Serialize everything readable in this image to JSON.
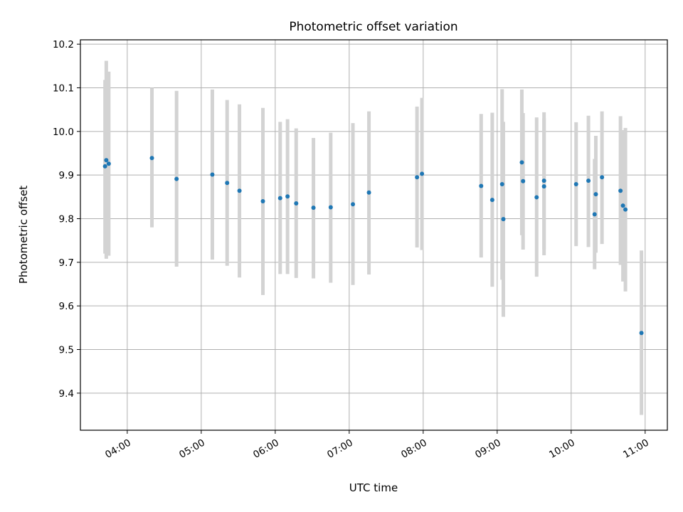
{
  "chart_data": {
    "type": "scatter",
    "title": "Photometric offset variation",
    "xlabel": "UTC time",
    "ylabel": "Photometric offset",
    "x_unit": "UTC time (HH:MM)",
    "xlim": [
      "03:22",
      "11:18"
    ],
    "ylim": [
      9.315,
      10.21
    ],
    "x_ticks": [
      "04:00",
      "05:00",
      "06:00",
      "07:00",
      "08:00",
      "09:00",
      "10:00",
      "11:00"
    ],
    "y_ticks": [
      "9.4",
      "9.5",
      "9.6",
      "9.7",
      "9.8",
      "9.9",
      "10.0",
      "10.1",
      "10.2"
    ],
    "grid": true,
    "marker_color": "#1f77b4",
    "errorbar_color": "#d3d3d3",
    "points": [
      {
        "x": "03:42",
        "y": 9.92,
        "lo": 9.72,
        "hi": 10.118
      },
      {
        "x": "03:43",
        "y": 9.934,
        "lo": 9.708,
        "hi": 10.162
      },
      {
        "x": "03:45",
        "y": 9.926,
        "lo": 9.715,
        "hi": 10.137
      },
      {
        "x": "04:20",
        "y": 9.939,
        "lo": 9.78,
        "hi": 10.1
      },
      {
        "x": "04:40",
        "y": 9.891,
        "lo": 9.69,
        "hi": 10.093
      },
      {
        "x": "05:09",
        "y": 9.901,
        "lo": 9.706,
        "hi": 10.096
      },
      {
        "x": "05:21",
        "y": 9.882,
        "lo": 9.692,
        "hi": 10.072
      },
      {
        "x": "05:31",
        "y": 9.864,
        "lo": 9.665,
        "hi": 10.062
      },
      {
        "x": "05:50",
        "y": 9.84,
        "lo": 9.625,
        "hi": 10.054
      },
      {
        "x": "06:04",
        "y": 9.847,
        "lo": 9.673,
        "hi": 10.022
      },
      {
        "x": "06:10",
        "y": 9.851,
        "lo": 9.673,
        "hi": 10.028
      },
      {
        "x": "06:17",
        "y": 9.835,
        "lo": 9.664,
        "hi": 10.007
      },
      {
        "x": "06:31",
        "y": 9.825,
        "lo": 9.663,
        "hi": 9.985
      },
      {
        "x": "06:45",
        "y": 9.826,
        "lo": 9.653,
        "hi": 9.997
      },
      {
        "x": "07:03",
        "y": 9.833,
        "lo": 9.648,
        "hi": 10.019
      },
      {
        "x": "07:16",
        "y": 9.86,
        "lo": 9.672,
        "hi": 10.046
      },
      {
        "x": "07:55",
        "y": 9.895,
        "lo": 9.734,
        "hi": 10.057
      },
      {
        "x": "07:59",
        "y": 9.903,
        "lo": 9.728,
        "hi": 10.077
      },
      {
        "x": "08:47",
        "y": 9.875,
        "lo": 9.711,
        "hi": 10.04
      },
      {
        "x": "08:56",
        "y": 9.843,
        "lo": 9.644,
        "hi": 10.043
      },
      {
        "x": "09:04",
        "y": 9.879,
        "lo": 9.66,
        "hi": 10.097
      },
      {
        "x": "09:05",
        "y": 9.799,
        "lo": 9.575,
        "hi": 10.022
      },
      {
        "x": "09:20",
        "y": 9.929,
        "lo": 9.762,
        "hi": 10.096
      },
      {
        "x": "09:21",
        "y": 9.886,
        "lo": 9.729,
        "hi": 10.042
      },
      {
        "x": "09:32",
        "y": 9.849,
        "lo": 9.667,
        "hi": 10.032
      },
      {
        "x": "09:38",
        "y": 9.874,
        "lo": 9.716,
        "hi": 10.03
      },
      {
        "x": "09:38",
        "y": 9.887,
        "lo": 9.73,
        "hi": 10.044
      },
      {
        "x": "10:04",
        "y": 9.879,
        "lo": 9.737,
        "hi": 10.021
      },
      {
        "x": "10:14",
        "y": 9.887,
        "lo": 9.735,
        "hi": 10.036
      },
      {
        "x": "10:19",
        "y": 9.81,
        "lo": 9.684,
        "hi": 9.937
      },
      {
        "x": "10:20",
        "y": 9.856,
        "lo": 9.722,
        "hi": 9.99
      },
      {
        "x": "10:25",
        "y": 9.895,
        "lo": 9.742,
        "hi": 10.046
      },
      {
        "x": "10:40",
        "y": 9.864,
        "lo": 9.694,
        "hi": 10.035
      },
      {
        "x": "10:42",
        "y": 9.83,
        "lo": 9.656,
        "hi": 10.003
      },
      {
        "x": "10:44",
        "y": 9.821,
        "lo": 9.633,
        "hi": 10.008
      },
      {
        "x": "10:57",
        "y": 9.538,
        "lo": 9.35,
        "hi": 9.727
      }
    ]
  }
}
